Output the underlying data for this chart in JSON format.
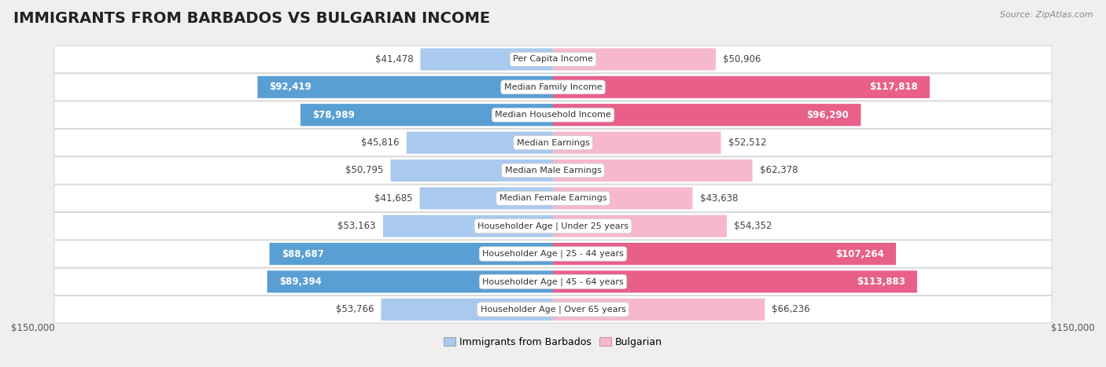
{
  "title": "IMMIGRANTS FROM BARBADOS VS BULGARIAN INCOME",
  "source": "Source: ZipAtlas.com",
  "categories": [
    "Per Capita Income",
    "Median Family Income",
    "Median Household Income",
    "Median Earnings",
    "Median Male Earnings",
    "Median Female Earnings",
    "Householder Age | Under 25 years",
    "Householder Age | 25 - 44 years",
    "Householder Age | 45 - 64 years",
    "Householder Age | Over 65 years"
  ],
  "barbados_values": [
    41478,
    92419,
    78989,
    45816,
    50795,
    41685,
    53163,
    88687,
    89394,
    53766
  ],
  "bulgarian_values": [
    50906,
    117818,
    96290,
    52512,
    62378,
    43638,
    54352,
    107264,
    113883,
    66236
  ],
  "barbados_labels": [
    "$41,478",
    "$92,419",
    "$78,989",
    "$45,816",
    "$50,795",
    "$41,685",
    "$53,163",
    "$88,687",
    "$89,394",
    "$53,766"
  ],
  "bulgarian_labels": [
    "$50,906",
    "$117,818",
    "$96,290",
    "$52,512",
    "$62,378",
    "$43,638",
    "$54,352",
    "$107,264",
    "$113,883",
    "$66,236"
  ],
  "max_value": 150000,
  "barbados_color_light": "#aac9ee",
  "barbados_color_dark": "#5a9fd4",
  "bulgarian_color_light": "#f5b8ce",
  "bulgarian_color_dark": "#e8608a",
  "bg_color": "#efefef",
  "row_bg": "#f9f9f9",
  "row_bg_alt": "#ffffff",
  "title_fontsize": 14,
  "label_fontsize": 8.5,
  "legend_barbados": "Immigrants from Barbados",
  "legend_bulgarian": "Bulgarian",
  "inside_threshold": 70000
}
